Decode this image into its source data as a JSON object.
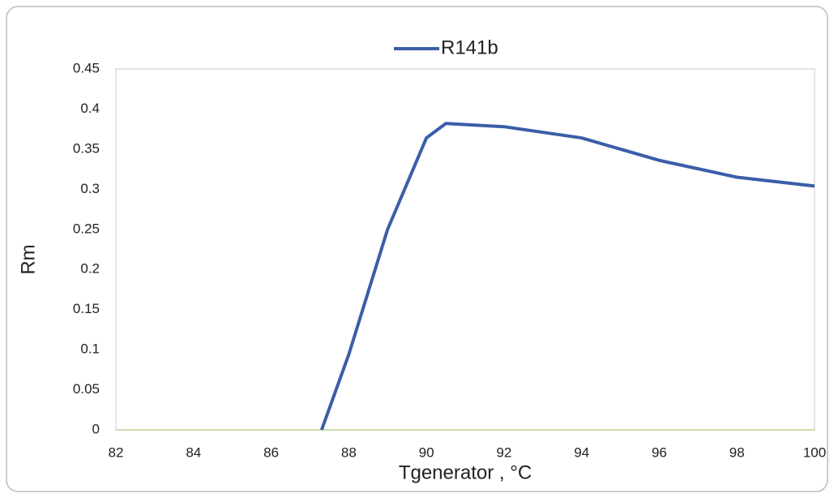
{
  "chart_data": {
    "type": "line",
    "x_label": "Tgenerator , °C",
    "y_label": "Rm",
    "series": [
      {
        "name": "R141b",
        "color": "#3a5ea8",
        "x": [
          87.3,
          88,
          89,
          90,
          90.5,
          92,
          94,
          96,
          98,
          100
        ],
        "values": [
          0,
          0.094,
          0.25,
          0.364,
          0.382,
          0.378,
          0.364,
          0.336,
          0.315,
          0.304
        ]
      }
    ],
    "xlim": [
      82,
      100
    ],
    "xticks": [
      82,
      84,
      86,
      88,
      90,
      92,
      94,
      96,
      98,
      100
    ],
    "ylim": [
      0,
      0.45
    ],
    "yticks": [
      0,
      0.05,
      0.1,
      0.15,
      0.2,
      0.25,
      0.3,
      0.35,
      0.4,
      0.45
    ],
    "grid": false,
    "legend": "top"
  }
}
